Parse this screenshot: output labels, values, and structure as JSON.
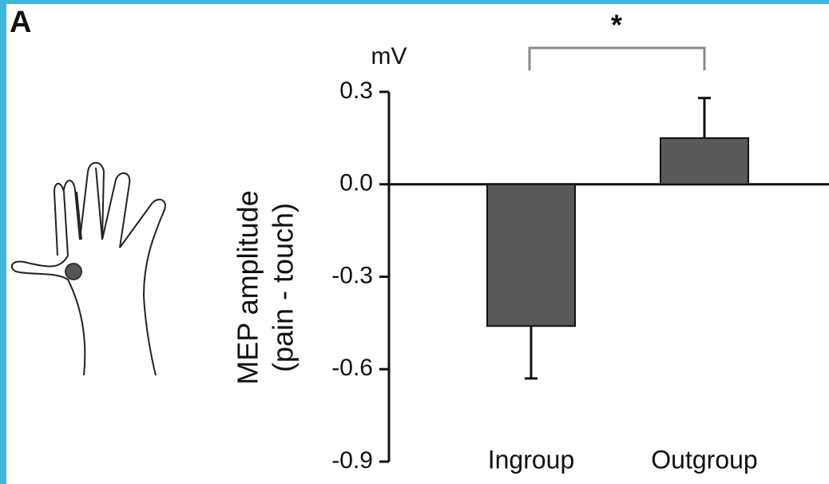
{
  "chart_data": {
    "type": "bar",
    "panel_label": "A",
    "y_unit": "mV",
    "y_label": [
      "MEP amplitude",
      "(pain - touch)"
    ],
    "significance": "*",
    "categories": [
      "Ingroup",
      "Outgroup"
    ],
    "values": [
      -0.46,
      0.15
    ],
    "errors": [
      0.17,
      0.13
    ],
    "color": "#595959",
    "ylim": [
      -0.9,
      0.3
    ],
    "yticks": [
      -0.9,
      -0.6,
      -0.3,
      {
        "value": 0,
        "label": "0.0"
      },
      0.3
    ]
  }
}
